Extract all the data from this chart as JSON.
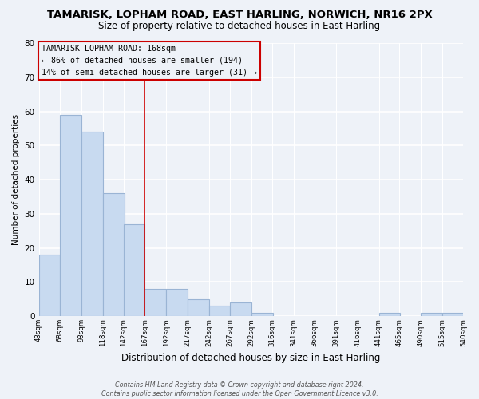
{
  "title": "TAMARISK, LOPHAM ROAD, EAST HARLING, NORWICH, NR16 2PX",
  "subtitle": "Size of property relative to detached houses in East Harling",
  "xlabel": "Distribution of detached houses by size in East Harling",
  "ylabel": "Number of detached properties",
  "bar_color": "#c8daf0",
  "bar_edge_color": "#9ab4d4",
  "vline_value": 167,
  "vline_color": "#cc0000",
  "annotation_lines": [
    "TAMARISK LOPHAM ROAD: 168sqm",
    "← 86% of detached houses are smaller (194)",
    "14% of semi-detached houses are larger (31) →"
  ],
  "annotation_box_edge": "#cc0000",
  "bins_left": [
    43,
    68,
    93,
    118,
    142,
    167,
    192,
    217,
    242,
    267,
    292,
    316,
    341,
    366,
    391,
    416,
    441,
    465,
    490,
    515
  ],
  "bin_width": 25,
  "counts": [
    18,
    59,
    54,
    36,
    27,
    8,
    8,
    5,
    3,
    4,
    1,
    0,
    0,
    0,
    0,
    0,
    1,
    0,
    1,
    1
  ],
  "xtick_labels": [
    "43sqm",
    "68sqm",
    "93sqm",
    "118sqm",
    "142sqm",
    "167sqm",
    "192sqm",
    "217sqm",
    "242sqm",
    "267sqm",
    "292sqm",
    "316sqm",
    "341sqm",
    "366sqm",
    "391sqm",
    "416sqm",
    "441sqm",
    "465sqm",
    "490sqm",
    "515sqm",
    "540sqm"
  ],
  "ylim": [
    0,
    80
  ],
  "yticks": [
    0,
    10,
    20,
    30,
    40,
    50,
    60,
    70,
    80
  ],
  "footnote": "Contains HM Land Registry data © Crown copyright and database right 2024.\nContains public sector information licensed under the Open Government Licence v3.0.",
  "background_color": "#eef2f8",
  "grid_color": "#ffffff",
  "title_fontsize": 9.5,
  "subtitle_fontsize": 8.5
}
